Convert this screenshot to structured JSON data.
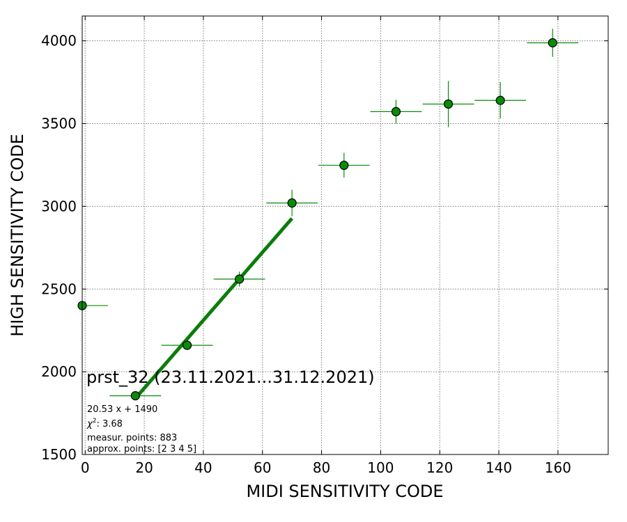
{
  "chart_data": {
    "type": "scatter",
    "xlabel": "MIDI SENSITIVITY CODE",
    "ylabel": "HIGH SENSITIVITY CODE",
    "xlim": [
      -1,
      177
    ],
    "ylim": [
      1500,
      4150
    ],
    "xticks": [
      0,
      20,
      40,
      60,
      80,
      100,
      120,
      140,
      160
    ],
    "yticks": [
      1500,
      2000,
      2500,
      3000,
      3500,
      4000
    ],
    "grid": true,
    "points": [
      {
        "x": -1,
        "y": 2400,
        "xerr": 8.7,
        "yerr": 0
      },
      {
        "x": 17,
        "y": 1855,
        "xerr": 8.7,
        "yerr": 0
      },
      {
        "x": 34.5,
        "y": 2160,
        "xerr": 8.7,
        "yerr": 25
      },
      {
        "x": 52.2,
        "y": 2560,
        "xerr": 8.7,
        "yerr": 45
      },
      {
        "x": 70,
        "y": 3020,
        "xerr": 8.7,
        "yerr": 80
      },
      {
        "x": 87.6,
        "y": 3248,
        "xerr": 8.7,
        "yerr": 75
      },
      {
        "x": 105.2,
        "y": 3572,
        "xerr": 8.7,
        "yerr": 72
      },
      {
        "x": 122.9,
        "y": 3618,
        "xerr": 8.7,
        "yerr": 140
      },
      {
        "x": 140.5,
        "y": 3640,
        "xerr": 8.7,
        "yerr": 110
      },
      {
        "x": 158.2,
        "y": 3988,
        "xerr": 8.7,
        "yerr": 85
      }
    ],
    "fit_line": {
      "slope": 20.53,
      "intercept": 1490,
      "x_start": 17,
      "x_end": 70
    },
    "colors": {
      "marker": "#0a8a0a",
      "errorbar": "#0a8a0a",
      "fit": "#0a7d0a",
      "grid": "#777777"
    },
    "annotations": {
      "title": "prst_32 (23.11.2021...31.12.2021)",
      "fit_text": "20.53 x + 1490",
      "chi_label": "χ",
      "chi_sup": "2",
      "chi_value": ": 3.68",
      "measur_points": "measur. points: 883",
      "approx_points": "approx. points: [2 3 4 5]"
    }
  }
}
